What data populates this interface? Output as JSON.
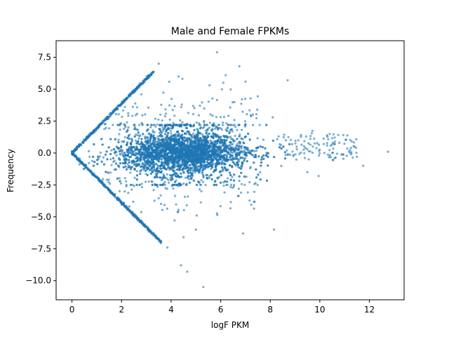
{
  "chart_data": {
    "type": "scatter",
    "title": "Male and Female FPKMs",
    "xlabel": "logF PKM",
    "ylabel": "Frequency",
    "xlim": [
      -0.64,
      13.4
    ],
    "ylim": [
      -11.5,
      8.8
    ],
    "xticks": [
      0,
      2,
      4,
      6,
      8,
      10,
      12
    ],
    "yticks": [
      -10.0,
      -7.5,
      -5.0,
      -2.5,
      0.0,
      2.5,
      5.0,
      7.5
    ],
    "xtick_labels": [
      "0",
      "2",
      "4",
      "6",
      "8",
      "10",
      "12"
    ],
    "ytick_labels": [
      "−10.0",
      "−7.5",
      "−5.0",
      "−2.5",
      "0.0",
      "2.5",
      "5.0",
      "7.5"
    ],
    "grid": false,
    "marker_color": "#1f77b4",
    "marker_alpha": 0.6,
    "sample_points": [
      {
        "x": 12.75,
        "y": 0.1
      },
      {
        "x": 11.75,
        "y": -1.0
      },
      {
        "x": 5.85,
        "y": 7.9
      },
      {
        "x": 5.3,
        "y": -10.5
      },
      {
        "x": 4.65,
        "y": -9.3
      },
      {
        "x": 4.4,
        "y": -8.8
      },
      {
        "x": 3.5,
        "y": 7.0
      },
      {
        "x": 3.85,
        "y": -7.4
      },
      {
        "x": 4.3,
        "y": 6.0
      },
      {
        "x": 6.75,
        "y": 6.8
      },
      {
        "x": 8.7,
        "y": 5.7
      },
      {
        "x": 8.15,
        "y": -6.0
      },
      {
        "x": 6.9,
        "y": -6.3
      },
      {
        "x": 6.2,
        "y": 6.1
      },
      {
        "x": 6.05,
        "y": 5.0
      },
      {
        "x": 4.5,
        "y": -6.6
      },
      {
        "x": 10.4,
        "y": 1.5
      },
      {
        "x": 10.95,
        "y": 1.4
      },
      {
        "x": 11.4,
        "y": 0.5
      },
      {
        "x": 9.5,
        "y": -1.5
      },
      {
        "x": 9.95,
        "y": -1.8
      },
      {
        "x": 8.1,
        "y": 2.8
      },
      {
        "x": 7.3,
        "y": 3.0
      },
      {
        "x": 7.0,
        "y": 5.6
      },
      {
        "x": 5.0,
        "y": -6.0
      },
      {
        "x": 5.55,
        "y": 5.3
      }
    ]
  }
}
